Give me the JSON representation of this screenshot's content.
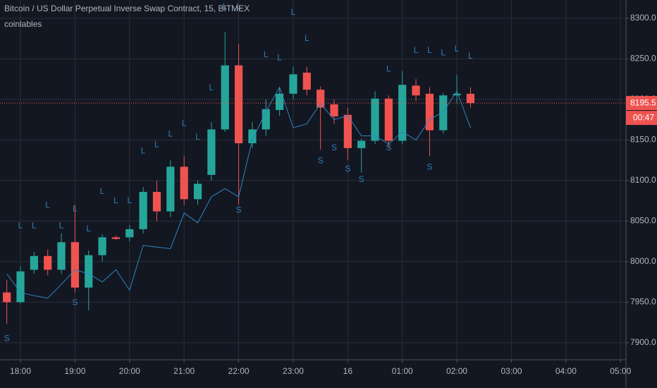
{
  "chart_data": {
    "type": "candlestick",
    "title": "Bitcoin / US Dollar Perpetual Inverse Swap Contract, 15, BITMEX",
    "subtitle": "coinlables",
    "x": [
      17.75,
      18,
      18.25,
      18.5,
      18.75,
      19,
      19.25,
      19.5,
      19.75,
      20,
      20.25,
      20.5,
      20.75,
      21,
      21.25,
      21.5,
      21.75,
      22,
      22.25,
      22.5,
      22.75,
      23,
      23.25,
      23.5,
      23.75,
      24,
      24.25,
      24.5,
      24.75,
      25,
      25.25,
      25.5,
      25.75,
      26,
      26.25
    ],
    "open": [
      7962,
      7950,
      7990,
      8007,
      7990,
      8024,
      7968,
      8008,
      8030,
      8030,
      8040,
      8086,
      8062,
      8117,
      8077,
      8107,
      8163,
      8242,
      8146,
      8163,
      8187,
      8207,
      8233,
      8212,
      8194,
      8181,
      8140,
      8149,
      8201,
      8149,
      8217,
      8207,
      8162,
      8205,
      8207
    ],
    "high": [
      7977,
      7994,
      8012,
      8015,
      8035,
      8070,
      8014,
      8034,
      8032,
      8045,
      8092,
      8100,
      8125,
      8130,
      8100,
      8172,
      8283,
      8268,
      8172,
      8200,
      8215,
      8240,
      8240,
      8216,
      8200,
      8190,
      8152,
      8210,
      8205,
      8235,
      8225,
      8215,
      8208,
      8230,
      8215
    ],
    "low": [
      7923,
      7948,
      7985,
      7983,
      7985,
      7962,
      7940,
      8000,
      8027,
      8025,
      8035,
      8050,
      8055,
      8070,
      8070,
      8100,
      8160,
      8070,
      8140,
      8155,
      8180,
      8200,
      8205,
      8138,
      8170,
      8125,
      8110,
      8145,
      8140,
      8145,
      8198,
      8130,
      8158,
      8195,
      8190
    ],
    "close": [
      7950,
      7988,
      8007,
      7990,
      8024,
      7968,
      8008,
      8030,
      8028,
      8040,
      8086,
      8062,
      8117,
      8077,
      8096,
      8163,
      8242,
      8146,
      8163,
      8188,
      8207,
      8231,
      8212,
      8190,
      8179,
      8140,
      8149,
      8201,
      8149,
      8218,
      8205,
      8162,
      8205,
      8207,
      8195.5
    ],
    "up_color": "#26a69a",
    "down_color": "#ef5350",
    "indicator": {
      "color": "#2e86c1",
      "values": [
        7985,
        7962,
        7958,
        7955,
        7972,
        7990,
        7985,
        7975,
        7990,
        7965,
        8020,
        8018,
        8016,
        8060,
        8048,
        8080,
        8090,
        8080,
        8150,
        8185,
        8215,
        8165,
        8170,
        8195,
        8175,
        8180,
        8155,
        8155,
        8145,
        8160,
        8150,
        8175,
        8185,
        8210,
        8165
      ]
    },
    "long_labels": {
      "text": "L",
      "color": "#2e7fb8",
      "x": [
        18,
        18.25,
        18.5,
        18.75,
        19,
        19.25,
        19.5,
        19.75,
        20,
        20.25,
        20.5,
        20.75,
        21,
        21.25,
        21.5,
        21.75,
        22,
        22.5,
        22.75,
        23,
        23.25,
        24.75,
        25.25,
        25.5,
        25.75,
        26,
        26.25
      ],
      "y": [
        8044,
        8044,
        8069,
        8044,
        8065,
        8040,
        8086,
        8075,
        8075,
        8136,
        8144,
        8157,
        8170,
        8153,
        8214,
        8314,
        8314,
        8255,
        8251,
        8307,
        8275,
        8237,
        8260,
        8260,
        8257,
        8262,
        8253
      ]
    },
    "short_labels": {
      "text": "S",
      "color": "#2e7fb8",
      "x": [
        17.75,
        19,
        22,
        23.5,
        23.75,
        24,
        24.25,
        24.75,
        25.5
      ],
      "y": [
        7905,
        7949,
        8063,
        8124,
        8140,
        8114,
        8101,
        8140,
        8116
      ]
    },
    "countdown": "00:47",
    "xlim": [
      17.625,
      29.1
    ],
    "xticks": [
      {
        "value": 18,
        "label": "18:00"
      },
      {
        "value": 19,
        "label": "19:00"
      },
      {
        "value": 20,
        "label": "20:00"
      },
      {
        "value": 21,
        "label": "21:00"
      },
      {
        "value": 22,
        "label": "22:00"
      },
      {
        "value": 23,
        "label": "23:00"
      },
      {
        "value": 24,
        "label": "16"
      },
      {
        "value": 25,
        "label": "01:00"
      },
      {
        "value": 26,
        "label": "02:00"
      },
      {
        "value": 27,
        "label": "03:00"
      },
      {
        "value": 28,
        "label": "04:00"
      },
      {
        "value": 29,
        "label": "05:00"
      }
    ],
    "ylim": [
      7879,
      8322.6
    ],
    "yticks": [
      {
        "value": 7900,
        "label": "7900.0"
      },
      {
        "value": 7950,
        "label": "7950.0"
      },
      {
        "value": 8000,
        "label": "8000.0"
      },
      {
        "value": 8050,
        "label": "8050.0"
      },
      {
        "value": 8100,
        "label": "8100.0"
      },
      {
        "value": 8150,
        "label": "8150.0"
      },
      {
        "value": 8200,
        "label": "8200.0"
      },
      {
        "value": 8250,
        "label": "8250.0"
      },
      {
        "value": 8300,
        "label": "8300.0"
      }
    ],
    "grid": true
  }
}
